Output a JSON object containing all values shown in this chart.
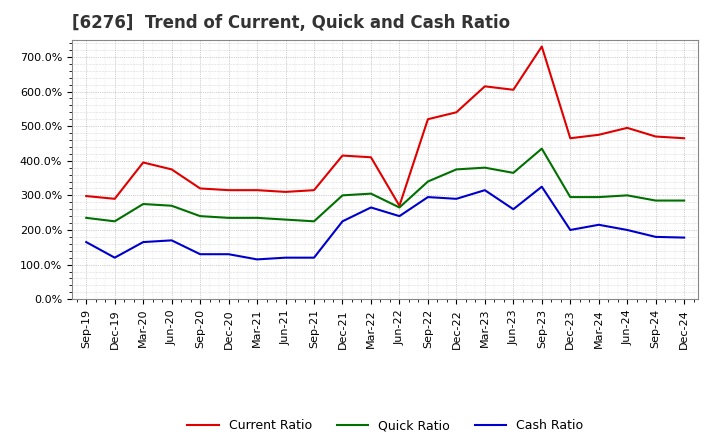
{
  "title": "[6276]  Trend of Current, Quick and Cash Ratio",
  "background_color": "#ffffff",
  "plot_background_color": "#ffffff",
  "grid_color": "#999999",
  "ylim": [
    0,
    750
  ],
  "yticks": [
    0,
    100,
    200,
    300,
    400,
    500,
    600,
    700
  ],
  "ytick_labels": [
    "0.0%",
    "100.0%",
    "200.0%",
    "300.0%",
    "400.0%",
    "500.0%",
    "600.0%",
    "700.0%"
  ],
  "x_labels": [
    "Sep-19",
    "Dec-19",
    "Mar-20",
    "Jun-20",
    "Sep-20",
    "Dec-20",
    "Mar-21",
    "Jun-21",
    "Sep-21",
    "Dec-21",
    "Mar-22",
    "Jun-22",
    "Sep-22",
    "Dec-22",
    "Mar-23",
    "Jun-23",
    "Sep-23",
    "Dec-23",
    "Mar-24",
    "Jun-24",
    "Sep-24",
    "Dec-24"
  ],
  "current_ratio": [
    298,
    290,
    395,
    375,
    320,
    315,
    315,
    310,
    315,
    415,
    410,
    270,
    520,
    540,
    615,
    605,
    730,
    465,
    475,
    495,
    470,
    465
  ],
  "quick_ratio": [
    235,
    225,
    275,
    270,
    240,
    235,
    235,
    230,
    225,
    300,
    305,
    265,
    340,
    375,
    380,
    365,
    435,
    295,
    295,
    300,
    285,
    285
  ],
  "cash_ratio": [
    165,
    120,
    165,
    170,
    130,
    130,
    115,
    120,
    120,
    225,
    265,
    240,
    295,
    290,
    315,
    260,
    325,
    200,
    215,
    200,
    180,
    178
  ],
  "current_color": "#e00000",
  "quick_color": "#007000",
  "cash_color": "#0000cc",
  "line_width": 1.5,
  "legend_entries": [
    "Current Ratio",
    "Quick Ratio",
    "Cash Ratio"
  ],
  "title_fontsize": 12,
  "tick_fontsize": 8,
  "legend_fontsize": 9
}
